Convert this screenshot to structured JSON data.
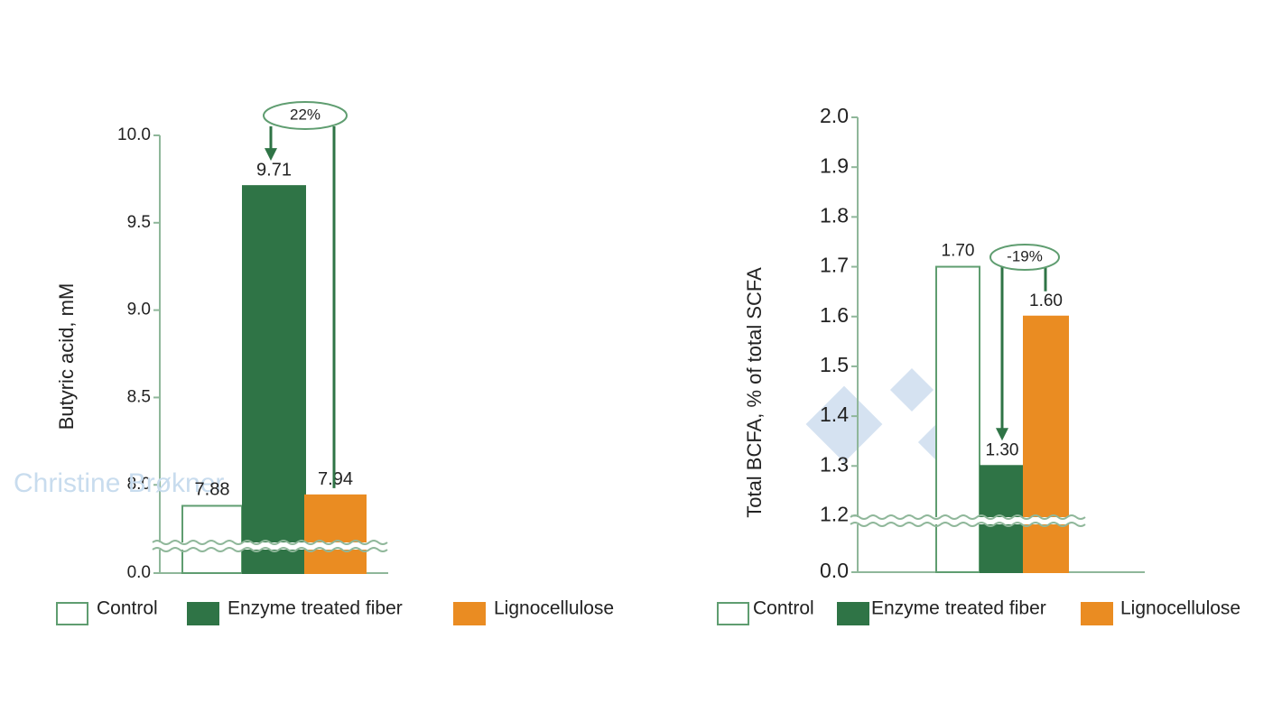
{
  "chart_data": [
    {
      "type": "bar",
      "y_label": "Butyric acid, mM",
      "annotation": "22%",
      "watermark": "Christine Brøkner",
      "ylim": [
        0,
        10
      ],
      "ybreak": 7.65,
      "yticks": [
        {
          "value": 0,
          "label": "0.0"
        },
        {
          "value": 8,
          "label": "8.0"
        },
        {
          "value": 8.5,
          "label": "8.5"
        },
        {
          "value": 9,
          "label": "9.0"
        },
        {
          "value": 9.5,
          "label": "9.5"
        },
        {
          "value": 10,
          "label": "10.0"
        }
      ],
      "series": [
        {
          "name": "Control",
          "color": "#ffffff",
          "values": [
            7.88
          ]
        },
        {
          "name": "Enzyme treated fiber",
          "color": "#2f7446",
          "values": [
            9.71
          ]
        },
        {
          "name": "Lignocellulose",
          "color": "#ea8c22",
          "values": [
            7.94
          ]
        }
      ]
    },
    {
      "type": "bar",
      "y_label": "Total BCFA, % of total SCFA",
      "annotation": "-19%",
      "ylim": [
        0,
        2
      ],
      "ybreak": 1.19,
      "yticks": [
        {
          "value": 0,
          "label": "0.0"
        },
        1.2,
        1.3,
        1.4,
        1.5,
        1.6,
        1.7,
        1.8,
        1.9,
        {
          "value": 2,
          "label": "2.0"
        }
      ],
      "series": [
        {
          "name": "Control",
          "color": "#ffffff",
          "values": [
            1.7
          ],
          "value_labels": [
            "1.70"
          ]
        },
        {
          "name": "Enzyme treated fiber",
          "color": "#2f7446",
          "values": [
            1.3
          ],
          "value_labels": [
            "1.30"
          ]
        },
        {
          "name": "Lignocellulose",
          "color": "#ea8c22",
          "values": [
            1.6
          ],
          "value_labels": [
            "1.60"
          ]
        }
      ]
    }
  ]
}
